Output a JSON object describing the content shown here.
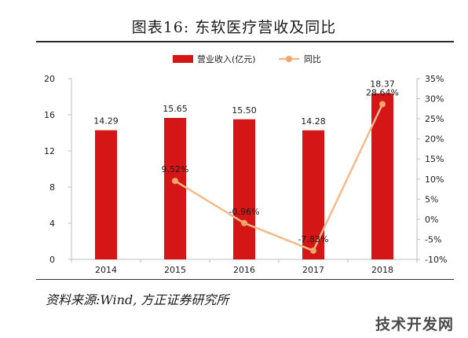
{
  "title": "图表16:   东软医疗营收及同比",
  "source": "资料来源:Wind, 方正证券研究所",
  "watermark": "技术开发网",
  "colors": {
    "bar": "#d41616",
    "line": "#f5b98a",
    "line_marker": "#f0a56a",
    "axis": "#bdbdbd"
  },
  "chart_data": {
    "type": "bar",
    "categories": [
      "2014",
      "2015",
      "2016",
      "2017",
      "2018"
    ],
    "series": [
      {
        "name": "营业收入(亿元)",
        "type": "bar",
        "axis": "left",
        "values": [
          14.29,
          15.65,
          15.5,
          14.28,
          18.37
        ],
        "labels": [
          "14.29",
          "15.65",
          "15.50",
          "14.28",
          "18.37"
        ]
      },
      {
        "name": "同比",
        "type": "line",
        "axis": "right",
        "values": [
          null,
          9.52,
          -0.96,
          -7.83,
          28.64
        ],
        "labels": [
          "",
          "9.52%",
          "-0.96%",
          "-7.83%",
          "28.64%"
        ]
      }
    ],
    "y_left": {
      "ylim": [
        0,
        20
      ],
      "ticks": [
        "0",
        "4",
        "8",
        "12",
        "16",
        "20"
      ]
    },
    "y_right": {
      "ylim": [
        -10,
        35
      ],
      "ticks": [
        "-10%",
        "-5%",
        "0%",
        "5%",
        "10%",
        "15%",
        "20%",
        "25%",
        "30%",
        "35%"
      ]
    },
    "legend": {
      "position": "top-center"
    },
    "grid": false
  }
}
